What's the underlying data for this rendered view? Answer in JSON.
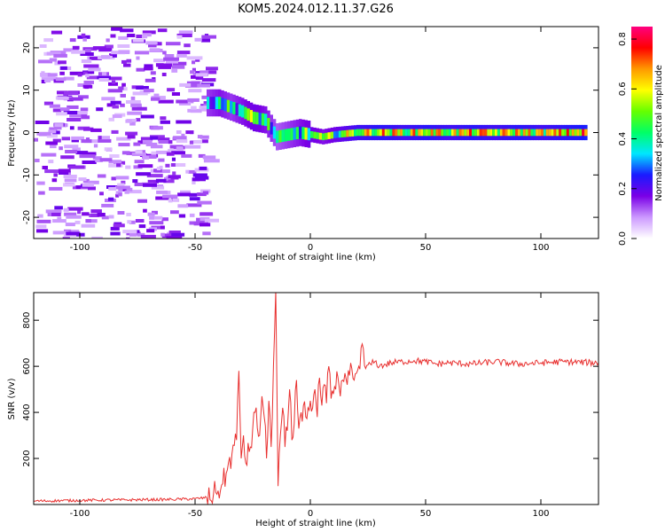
{
  "title": "KOM5.2024.012.11.37.G26",
  "chart_data": [
    {
      "type": "heatmap",
      "xlabel": "Height of straight line (km)",
      "ylabel": "Frequency (Hz)",
      "xlim": [
        -120,
        125
      ],
      "ylim": [
        -25,
        25
      ],
      "xticks": [
        -100,
        -50,
        0,
        50,
        100
      ],
      "yticks": [
        -20,
        -10,
        0,
        10,
        20
      ],
      "xtick_labels": [
        "-100",
        "-50",
        "0",
        "50",
        "100"
      ],
      "ytick_labels": [
        "-20",
        "-10",
        "0",
        "10",
        "20"
      ],
      "colorbar": {
        "label": "Normalized spectral amplitude",
        "range": [
          0,
          0.85
        ],
        "ticks": [
          0.0,
          0.2,
          0.4,
          0.6,
          0.8
        ],
        "tick_labels": [
          "0.0",
          "0.2",
          "0.4",
          "0.6",
          "0.8"
        ],
        "colors": [
          "#ffffff",
          "#cc99ff",
          "#7a00e6",
          "#1a1aff",
          "#00e6ff",
          "#00ff66",
          "#66ff00",
          "#ffff00",
          "#ff9900",
          "#ff0000",
          "#ff0080"
        ]
      },
      "ridge": [
        {
          "x": -45,
          "y": 7.0,
          "v": 0.35
        },
        {
          "x": -40,
          "y": 7.0,
          "v": 0.4
        },
        {
          "x": -35,
          "y": 6.0,
          "v": 0.35
        },
        {
          "x": -30,
          "y": 5.0,
          "v": 0.4
        },
        {
          "x": -25,
          "y": 3.5,
          "v": 0.45
        },
        {
          "x": -20,
          "y": 3.0,
          "v": 0.4
        },
        {
          "x": -15,
          "y": -1.0,
          "v": 0.3
        },
        {
          "x": -10,
          "y": -0.5,
          "v": 0.35
        },
        {
          "x": -5,
          "y": 0.0,
          "v": 0.4
        },
        {
          "x": 0,
          "y": -0.5,
          "v": 0.45
        },
        {
          "x": 5,
          "y": -1.0,
          "v": 0.4
        },
        {
          "x": 10,
          "y": -0.5,
          "v": 0.45
        },
        {
          "x": 20,
          "y": 0.0,
          "v": 0.55
        },
        {
          "x": 30,
          "y": 0.0,
          "v": 0.6
        },
        {
          "x": 40,
          "y": 0.0,
          "v": 0.55
        },
        {
          "x": 50,
          "y": 0.0,
          "v": 0.6
        },
        {
          "x": 60,
          "y": 0.0,
          "v": 0.55
        },
        {
          "x": 70,
          "y": 0.0,
          "v": 0.6
        },
        {
          "x": 80,
          "y": 0.0,
          "v": 0.55
        },
        {
          "x": 90,
          "y": 0.0,
          "v": 0.6
        },
        {
          "x": 100,
          "y": 0.0,
          "v": 0.55
        },
        {
          "x": 110,
          "y": 0.0,
          "v": 0.6
        },
        {
          "x": 120,
          "y": 0.0,
          "v": 0.65
        }
      ]
    },
    {
      "type": "line",
      "xlabel": "Height of straight line (km)",
      "ylabel": "SNR (v/v)",
      "xlim": [
        -120,
        125
      ],
      "ylim": [
        0,
        920
      ],
      "xticks": [
        -100,
        -50,
        0,
        50,
        100
      ],
      "yticks": [
        200,
        400,
        600,
        800
      ],
      "xtick_labels": [
        "-100",
        "-50",
        "0",
        "50",
        "100"
      ],
      "ytick_labels": [
        "200",
        "400",
        "600",
        "800"
      ],
      "color": "#e8302f",
      "x": [
        -120,
        -100,
        -80,
        -60,
        -50,
        -45,
        -42,
        -40,
        -38,
        -36,
        -34,
        -32,
        -31,
        -30,
        -29,
        -28,
        -26,
        -24,
        -22,
        -21,
        -20,
        -19,
        -18,
        -17,
        -16,
        -15,
        -14,
        -13,
        -12,
        -11,
        -10,
        -9,
        -8,
        -7,
        -6,
        -5,
        -4,
        -3,
        -2,
        -1,
        0,
        1,
        2,
        3,
        4,
        5,
        6,
        7,
        8,
        9,
        10,
        11,
        12,
        13,
        14,
        15,
        16,
        17,
        18,
        19,
        20,
        21,
        22,
        24,
        26,
        28,
        30,
        35,
        40,
        45,
        50,
        55,
        60,
        70,
        80,
        90,
        100,
        110,
        125
      ],
      "y": [
        15,
        18,
        20,
        22,
        25,
        30,
        45,
        60,
        90,
        150,
        220,
        280,
        580,
        200,
        300,
        180,
        250,
        400,
        300,
        470,
        380,
        200,
        450,
        250,
        600,
        930,
        80,
        300,
        420,
        250,
        320,
        500,
        280,
        350,
        540,
        330,
        400,
        430,
        380,
        420,
        450,
        420,
        500,
        380,
        550,
        430,
        520,
        440,
        600,
        460,
        480,
        500,
        550,
        470,
        540,
        570,
        520,
        560,
        590,
        540,
        570,
        600,
        680,
        590,
        610,
        620,
        600,
        615,
        620,
        625,
        620,
        610,
        615,
        610,
        620,
        610,
        615,
        620,
        615
      ]
    }
  ]
}
